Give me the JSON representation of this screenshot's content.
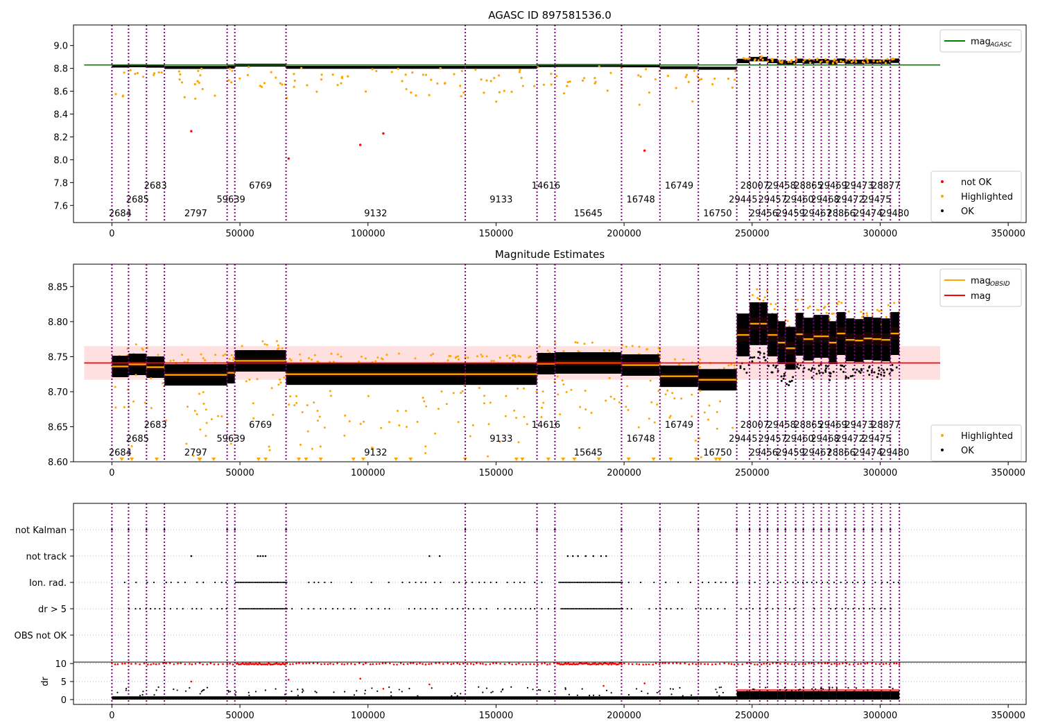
{
  "chart_data": [
    {
      "type": "scatter",
      "title": "AGASC ID 897581536.0",
      "xlim": [
        -15000,
        357000
      ],
      "ylim": [
        7.45,
        9.18
      ],
      "yticks": [
        9.0,
        8.8,
        8.6,
        8.4,
        8.2,
        8.0,
        7.8,
        7.6
      ],
      "xticks": [
        0,
        50000,
        100000,
        150000,
        200000,
        250000,
        300000,
        350000
      ],
      "mag_agasc": 8.83,
      "legends": {
        "line": [
          {
            "label": "mag",
            "sub": "AGASC",
            "color": "#008000"
          }
        ],
        "points": [
          {
            "label": "not OK",
            "color": "#ff0000"
          },
          {
            "label": "Highlighted",
            "color": "#ffa500"
          },
          {
            "label": "OK",
            "color": "#000000"
          }
        ]
      },
      "not_ok_points": [
        [
          31000,
          8.25
        ],
        [
          69000,
          8.01
        ],
        [
          97000,
          8.13
        ],
        [
          106000,
          8.23
        ],
        [
          208000,
          8.08
        ]
      ]
    },
    {
      "type": "scatter",
      "title": "Magnitude Estimates",
      "xlim": [
        -15000,
        357000
      ],
      "ylim": [
        8.6,
        8.882
      ],
      "yticks": [
        8.85,
        8.8,
        8.75,
        8.7,
        8.65,
        8.6
      ],
      "xticks": [
        0,
        50000,
        100000,
        150000,
        200000,
        250000,
        300000,
        350000
      ],
      "mag": 8.741,
      "mag_band": [
        8.717,
        8.765
      ],
      "legends": {
        "line": [
          {
            "label": "mag",
            "sub": "OBSID",
            "color": "#ffa500"
          },
          {
            "label": "mag",
            "sub": "",
            "color": "#ff0000"
          }
        ],
        "points": [
          {
            "label": "Highlighted",
            "color": "#ffa500"
          },
          {
            "label": "OK",
            "color": "#000000"
          }
        ]
      }
    },
    {
      "type": "scatter",
      "title": "",
      "categories": [
        "not Kalman",
        "not track",
        "Ion. rad.",
        "dr > 5",
        "OBS not OK"
      ],
      "dr_yticks": [
        "10",
        "5",
        "0"
      ],
      "dr_ylabel": "dr",
      "xticks": [
        0,
        50000,
        100000,
        150000,
        200000,
        250000,
        300000,
        350000
      ]
    }
  ],
  "obsids": [
    {
      "id": "2684",
      "start": 0,
      "end": 6500,
      "lvl": 0,
      "mag": 8.736
    },
    {
      "id": "2685",
      "start": 6500,
      "end": 13500,
      "lvl": 1,
      "mag": 8.739
    },
    {
      "id": "2683",
      "start": 13500,
      "end": 20500,
      "lvl": 2,
      "mag": 8.735
    },
    {
      "id": "2797",
      "start": 20500,
      "end": 45000,
      "lvl": 0,
      "mag": 8.724
    },
    {
      "id": "59639",
      "start": 45000,
      "end": 48000,
      "lvl": 1,
      "mag": 8.727
    },
    {
      "id": "6769",
      "start": 48000,
      "end": 68000,
      "lvl": 2,
      "mag": 8.744
    },
    {
      "id": "9132",
      "start": 68000,
      "end": 138000,
      "lvl": 0,
      "mag": 8.725
    },
    {
      "id": "9133",
      "start": 138000,
      "end": 166000,
      "lvl": 1,
      "mag": 8.725
    },
    {
      "id": "14616",
      "start": 166000,
      "end": 173000,
      "lvl": 2,
      "mag": 8.74
    },
    {
      "id": "15645",
      "start": 173000,
      "end": 199000,
      "lvl": 0,
      "mag": 8.741
    },
    {
      "id": "16748",
      "start": 199000,
      "end": 214000,
      "lvl": 1,
      "mag": 8.738
    },
    {
      "id": "16749",
      "start": 214000,
      "end": 229000,
      "lvl": 2,
      "mag": 8.722
    },
    {
      "id": "16750",
      "start": 229000,
      "end": 244000,
      "lvl": 0,
      "mag": 8.717
    },
    {
      "id": "29445",
      "start": 244000,
      "end": 249000,
      "lvl": 1,
      "mag": 8.781
    },
    {
      "id": "28007",
      "start": 249000,
      "end": 253000,
      "lvl": 2,
      "mag": 8.797
    },
    {
      "id": "29456",
      "start": 253000,
      "end": 256000,
      "lvl": 0,
      "mag": 8.797
    },
    {
      "id": "29457",
      "start": 256000,
      "end": 260000,
      "lvl": 1,
      "mag": 8.781
    },
    {
      "id": "29458",
      "start": 260000,
      "end": 263000,
      "lvl": 2,
      "mag": 8.77
    },
    {
      "id": "29459",
      "start": 263000,
      "end": 267000,
      "lvl": 0,
      "mag": 8.762
    },
    {
      "id": "29460",
      "start": 267000,
      "end": 270000,
      "lvl": 1,
      "mag": 8.782
    },
    {
      "id": "28865",
      "start": 270000,
      "end": 274000,
      "lvl": 2,
      "mag": 8.775
    },
    {
      "id": "29467",
      "start": 274000,
      "end": 277000,
      "lvl": 0,
      "mag": 8.779
    },
    {
      "id": "29468",
      "start": 277000,
      "end": 280000,
      "lvl": 1,
      "mag": 8.779
    },
    {
      "id": "29469",
      "start": 280000,
      "end": 283000,
      "lvl": 2,
      "mag": 8.77
    },
    {
      "id": "28866",
      "start": 283000,
      "end": 286500,
      "lvl": 0,
      "mag": 8.783
    },
    {
      "id": "29472",
      "start": 286500,
      "end": 290000,
      "lvl": 1,
      "mag": 8.774
    },
    {
      "id": "29473",
      "start": 290000,
      "end": 293500,
      "lvl": 2,
      "mag": 8.773
    },
    {
      "id": "29474",
      "start": 293500,
      "end": 297000,
      "lvl": 0,
      "mag": 8.776
    },
    {
      "id": "29475",
      "start": 297000,
      "end": 300500,
      "lvl": 1,
      "mag": 8.775
    },
    {
      "id": "28877",
      "start": 300500,
      "end": 304000,
      "lvl": 2,
      "mag": 8.774
    },
    {
      "id": "29480",
      "start": 304000,
      "end": 307500,
      "lvl": 0,
      "mag": 8.783
    }
  ]
}
